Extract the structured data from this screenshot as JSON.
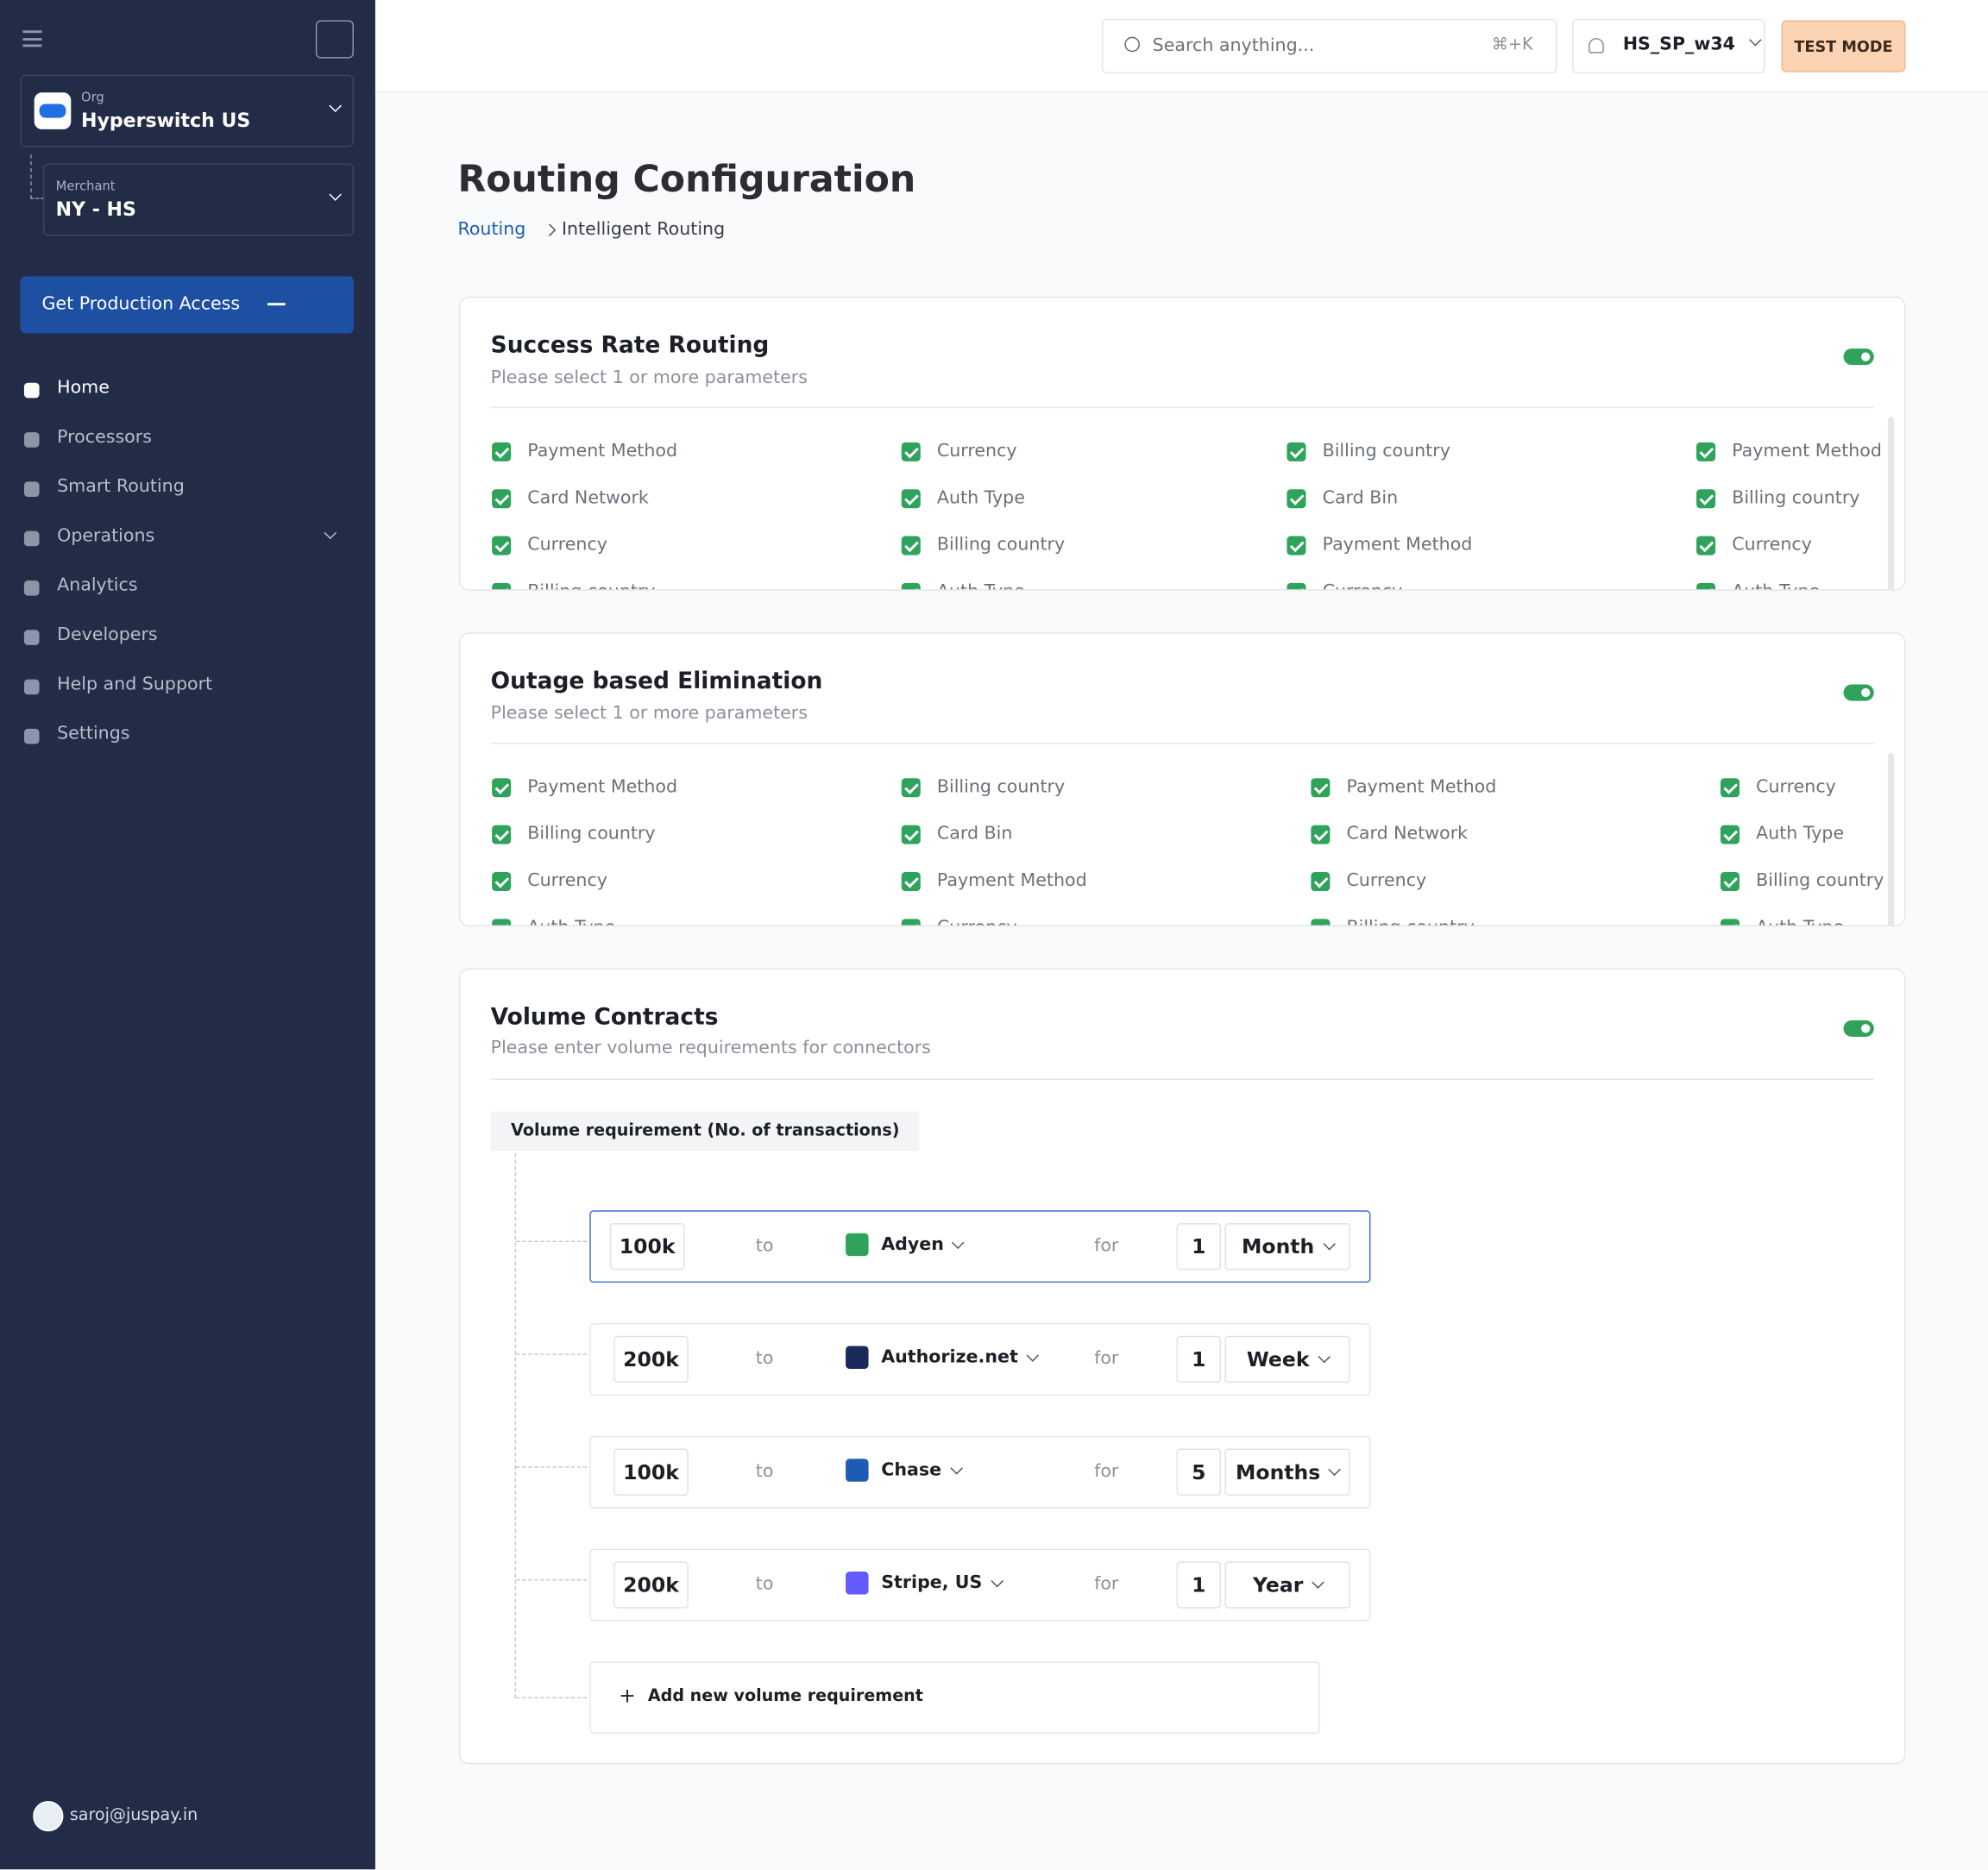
{
  "sidebar": {
    "org_label": "Org",
    "org_name": "Hyperswitch US",
    "merchant_label": "Merchant",
    "merchant_name": "NY - HS",
    "cta": "Get Production Access",
    "nav": [
      "Home",
      "Processors",
      "Smart Routing",
      "Operations",
      "Analytics",
      "Developers",
      "Help and Support",
      "Settings"
    ],
    "user": "saroj@juspay.in"
  },
  "header": {
    "search_placeholder": "Search anything...",
    "shortcut": "⌘+K",
    "profile": "HS_SP_w34",
    "mode": "TEST MODE"
  },
  "page": {
    "title": "Routing Configuration",
    "breadcrumb": [
      "Routing",
      "Intelligent Routing"
    ]
  },
  "sections": [
    {
      "title": "Success Rate Routing",
      "subtitle": "Please select 1 or more parameters",
      "parameters": [
        [
          "Payment Method",
          "Card Network",
          "Currency",
          "Billing country"
        ],
        [
          "Currency",
          "Auth Type",
          "Billing country",
          "Auth Type"
        ],
        [
          "Billing country",
          "Card Bin",
          "Payment Method",
          "Currency"
        ],
        [
          "Payment Method",
          "Billing country",
          "Currency",
          "Auth Type"
        ]
      ]
    },
    {
      "title": "Outage based Elimination",
      "subtitle": "Please select 1 or more parameters",
      "parameters": [
        [
          "Payment Method",
          "Billing country",
          "Currency",
          "Auth Type"
        ],
        [
          "Billing country",
          "Card Bin",
          "Payment Method",
          "Currency"
        ],
        [
          "Payment Method",
          "Card Network",
          "Currency",
          "Billing country"
        ],
        [
          "Currency",
          "Auth Type",
          "Billing country",
          "Auth Type"
        ]
      ]
    }
  ],
  "volume": {
    "title": "Volume Contracts",
    "subtitle": "Please enter volume requirements for connectors",
    "heading": "Volume requirement (No. of transactions)",
    "rows": [
      {
        "amount": "100k",
        "to": "to",
        "connector": "Adyen",
        "for": "for",
        "count": "1",
        "period": "Month"
      },
      {
        "amount": "200k",
        "to": "to",
        "connector": "Authorize.net",
        "for": "for",
        "count": "1",
        "period": "Week"
      },
      {
        "amount": "100k",
        "to": "to",
        "connector": "Chase",
        "for": "for",
        "count": "5",
        "period": "Months"
      },
      {
        "amount": "200k",
        "to": "to",
        "connector": "Stripe, US",
        "for": "for",
        "count": "1",
        "period": "Year"
      }
    ],
    "add": "Add new volume requirement"
  }
}
